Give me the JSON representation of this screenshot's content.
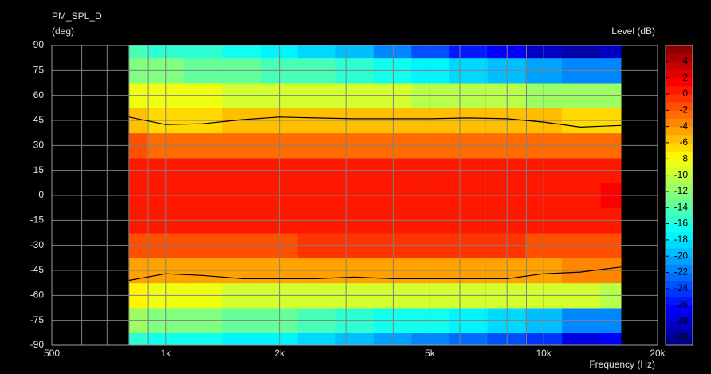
{
  "chart_data": {
    "type": "contour",
    "title": "PM_SPL_D",
    "y_label": "(deg)",
    "colorbar_label": "Level  (dB)",
    "x_label": "Frequency  (Hz)",
    "log_x": true,
    "grid": true,
    "x": [
      800,
      1000,
      1250,
      1600,
      2000,
      2500,
      3150,
      4000,
      5000,
      6300,
      8000,
      10000,
      12500,
      16000
    ],
    "y": [
      -90,
      -75,
      -60,
      -45,
      -30,
      -15,
      0,
      15,
      30,
      45,
      60,
      75,
      90
    ],
    "z": [
      [
        -16,
        -17,
        -17,
        -18,
        -18,
        -19,
        -20,
        -21,
        -22,
        -23,
        -24,
        -25,
        -28,
        -27
      ],
      [
        -12,
        -13,
        -13,
        -14,
        -14,
        -15,
        -16,
        -17,
        -17,
        -18,
        -19,
        -20,
        -22,
        -22
      ],
      [
        -8,
        -9,
        -9,
        -10,
        -10,
        -10,
        -10,
        -10,
        -10,
        -10,
        -10,
        -10,
        -10,
        -11
      ],
      [
        -5,
        -4.5,
        -5,
        -5,
        -5,
        -5,
        -5,
        -5,
        -5,
        -5,
        -5,
        -4.5,
        -4,
        -3.5
      ],
      [
        -1.5,
        -1.5,
        -1.5,
        -1.5,
        -1.5,
        -1,
        -1,
        -1,
        -1,
        -1,
        -1,
        -1.5,
        -1.5,
        -1.5
      ],
      [
        0.3,
        0.3,
        0.3,
        0.4,
        0.5,
        0.5,
        0.5,
        0.5,
        0.5,
        0.5,
        0.5,
        0.5,
        0.5,
        0.6
      ],
      [
        0.5,
        0.5,
        0.5,
        0.5,
        0.5,
        0.6,
        0.6,
        0.6,
        0.6,
        0.6,
        0.6,
        0.6,
        0.8,
        1.5
      ],
      [
        0.3,
        0.3,
        0.3,
        0.4,
        0.5,
        0.5,
        0.5,
        0.5,
        0.5,
        0.5,
        0.5,
        0.5,
        0.5,
        0.6
      ],
      [
        -2,
        -2.5,
        -2.5,
        -2.5,
        -2.5,
        -2.5,
        -2.5,
        -2.5,
        -2.5,
        -2.5,
        -2.5,
        -2.5,
        -2.5,
        -2.5
      ],
      [
        -5.5,
        -6.5,
        -6.5,
        -6,
        -5.5,
        -5.5,
        -5.5,
        -5.5,
        -5.5,
        -5.5,
        -5.5,
        -6,
        -6.5,
        -6.5
      ],
      [
        -9,
        -9,
        -9,
        -9.5,
        -10,
        -10,
        -10,
        -10,
        -11,
        -11,
        -11,
        -12,
        -12,
        -12
      ],
      [
        -13,
        -13,
        -14,
        -14,
        -15,
        -15,
        -16,
        -17,
        -18,
        -19,
        -20,
        -21,
        -22,
        -22
      ],
      [
        -15,
        -16,
        -16,
        -17,
        -18,
        -19,
        -20,
        -22,
        -24,
        -26,
        -27,
        -29,
        -30,
        -29
      ]
    ],
    "lines": [
      {
        "color": "#000000",
        "values": [
          47,
          42.5,
          43,
          45.5,
          47,
          46.5,
          46,
          46,
          46,
          46.5,
          46,
          44,
          41,
          42
        ]
      },
      {
        "color": "#000000",
        "values": [
          -51,
          -47,
          -48,
          -50,
          -50,
          -50,
          -49,
          -50,
          -50,
          -50,
          -50,
          -47,
          -46,
          -43
        ]
      }
    ],
    "xlim": [
      500,
      20000
    ],
    "xticks": [
      500,
      {
        "value": 1000,
        "label": "1k"
      },
      {
        "value": 2000,
        "label": "2k"
      },
      {
        "value": 5000,
        "label": "5k"
      },
      {
        "value": 10000,
        "label": "10k"
      },
      {
        "value": 20000,
        "label": "20k"
      }
    ],
    "xminorticks": [
      600,
      700,
      800,
      900,
      3000,
      4000,
      6000,
      7000,
      8000,
      9000
    ],
    "ylim": [
      -90,
      90
    ],
    "yticks": [
      -90,
      -75,
      -60,
      -45,
      -30,
      -15,
      0,
      15,
      30,
      45,
      60,
      75,
      90
    ],
    "clim": [
      -31,
      6
    ],
    "cticks": [
      4,
      2,
      0,
      -2,
      -4,
      -6,
      -8,
      -10,
      -12,
      -14,
      -16,
      -18,
      -20,
      -22,
      -24,
      -26,
      -28,
      -30
    ]
  }
}
